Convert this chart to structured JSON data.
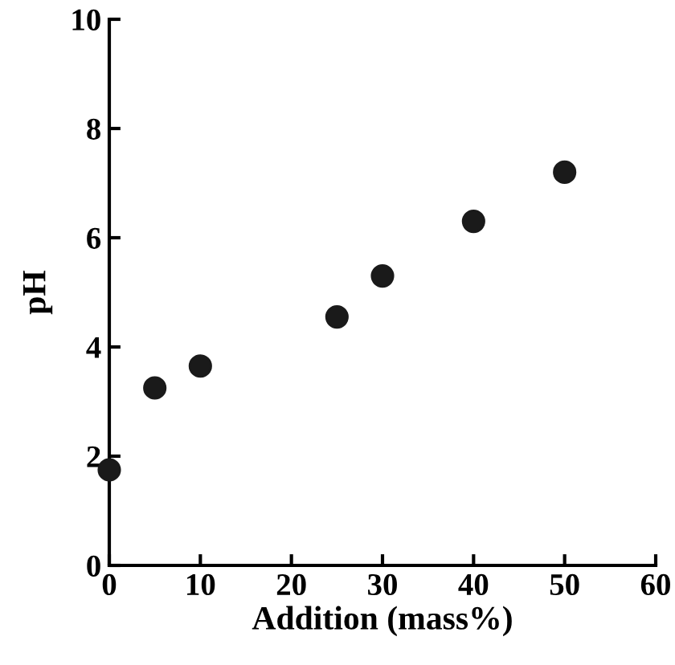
{
  "chart_data": {
    "type": "scatter",
    "xlabel": "Addition (mass%)",
    "ylabel": "pH",
    "x": [
      0,
      5,
      10,
      25,
      30,
      40,
      50
    ],
    "values": [
      1.75,
      3.25,
      3.65,
      4.55,
      5.3,
      6.3,
      7.2
    ],
    "color": "#1a1a1a",
    "marker": "circle",
    "xlim": [
      0,
      60
    ],
    "xticks": [
      0,
      10,
      20,
      30,
      40,
      50,
      60
    ],
    "ylim": [
      0,
      10
    ],
    "yticks": [
      0,
      2,
      4,
      6,
      8,
      10
    ],
    "grid": false
  }
}
